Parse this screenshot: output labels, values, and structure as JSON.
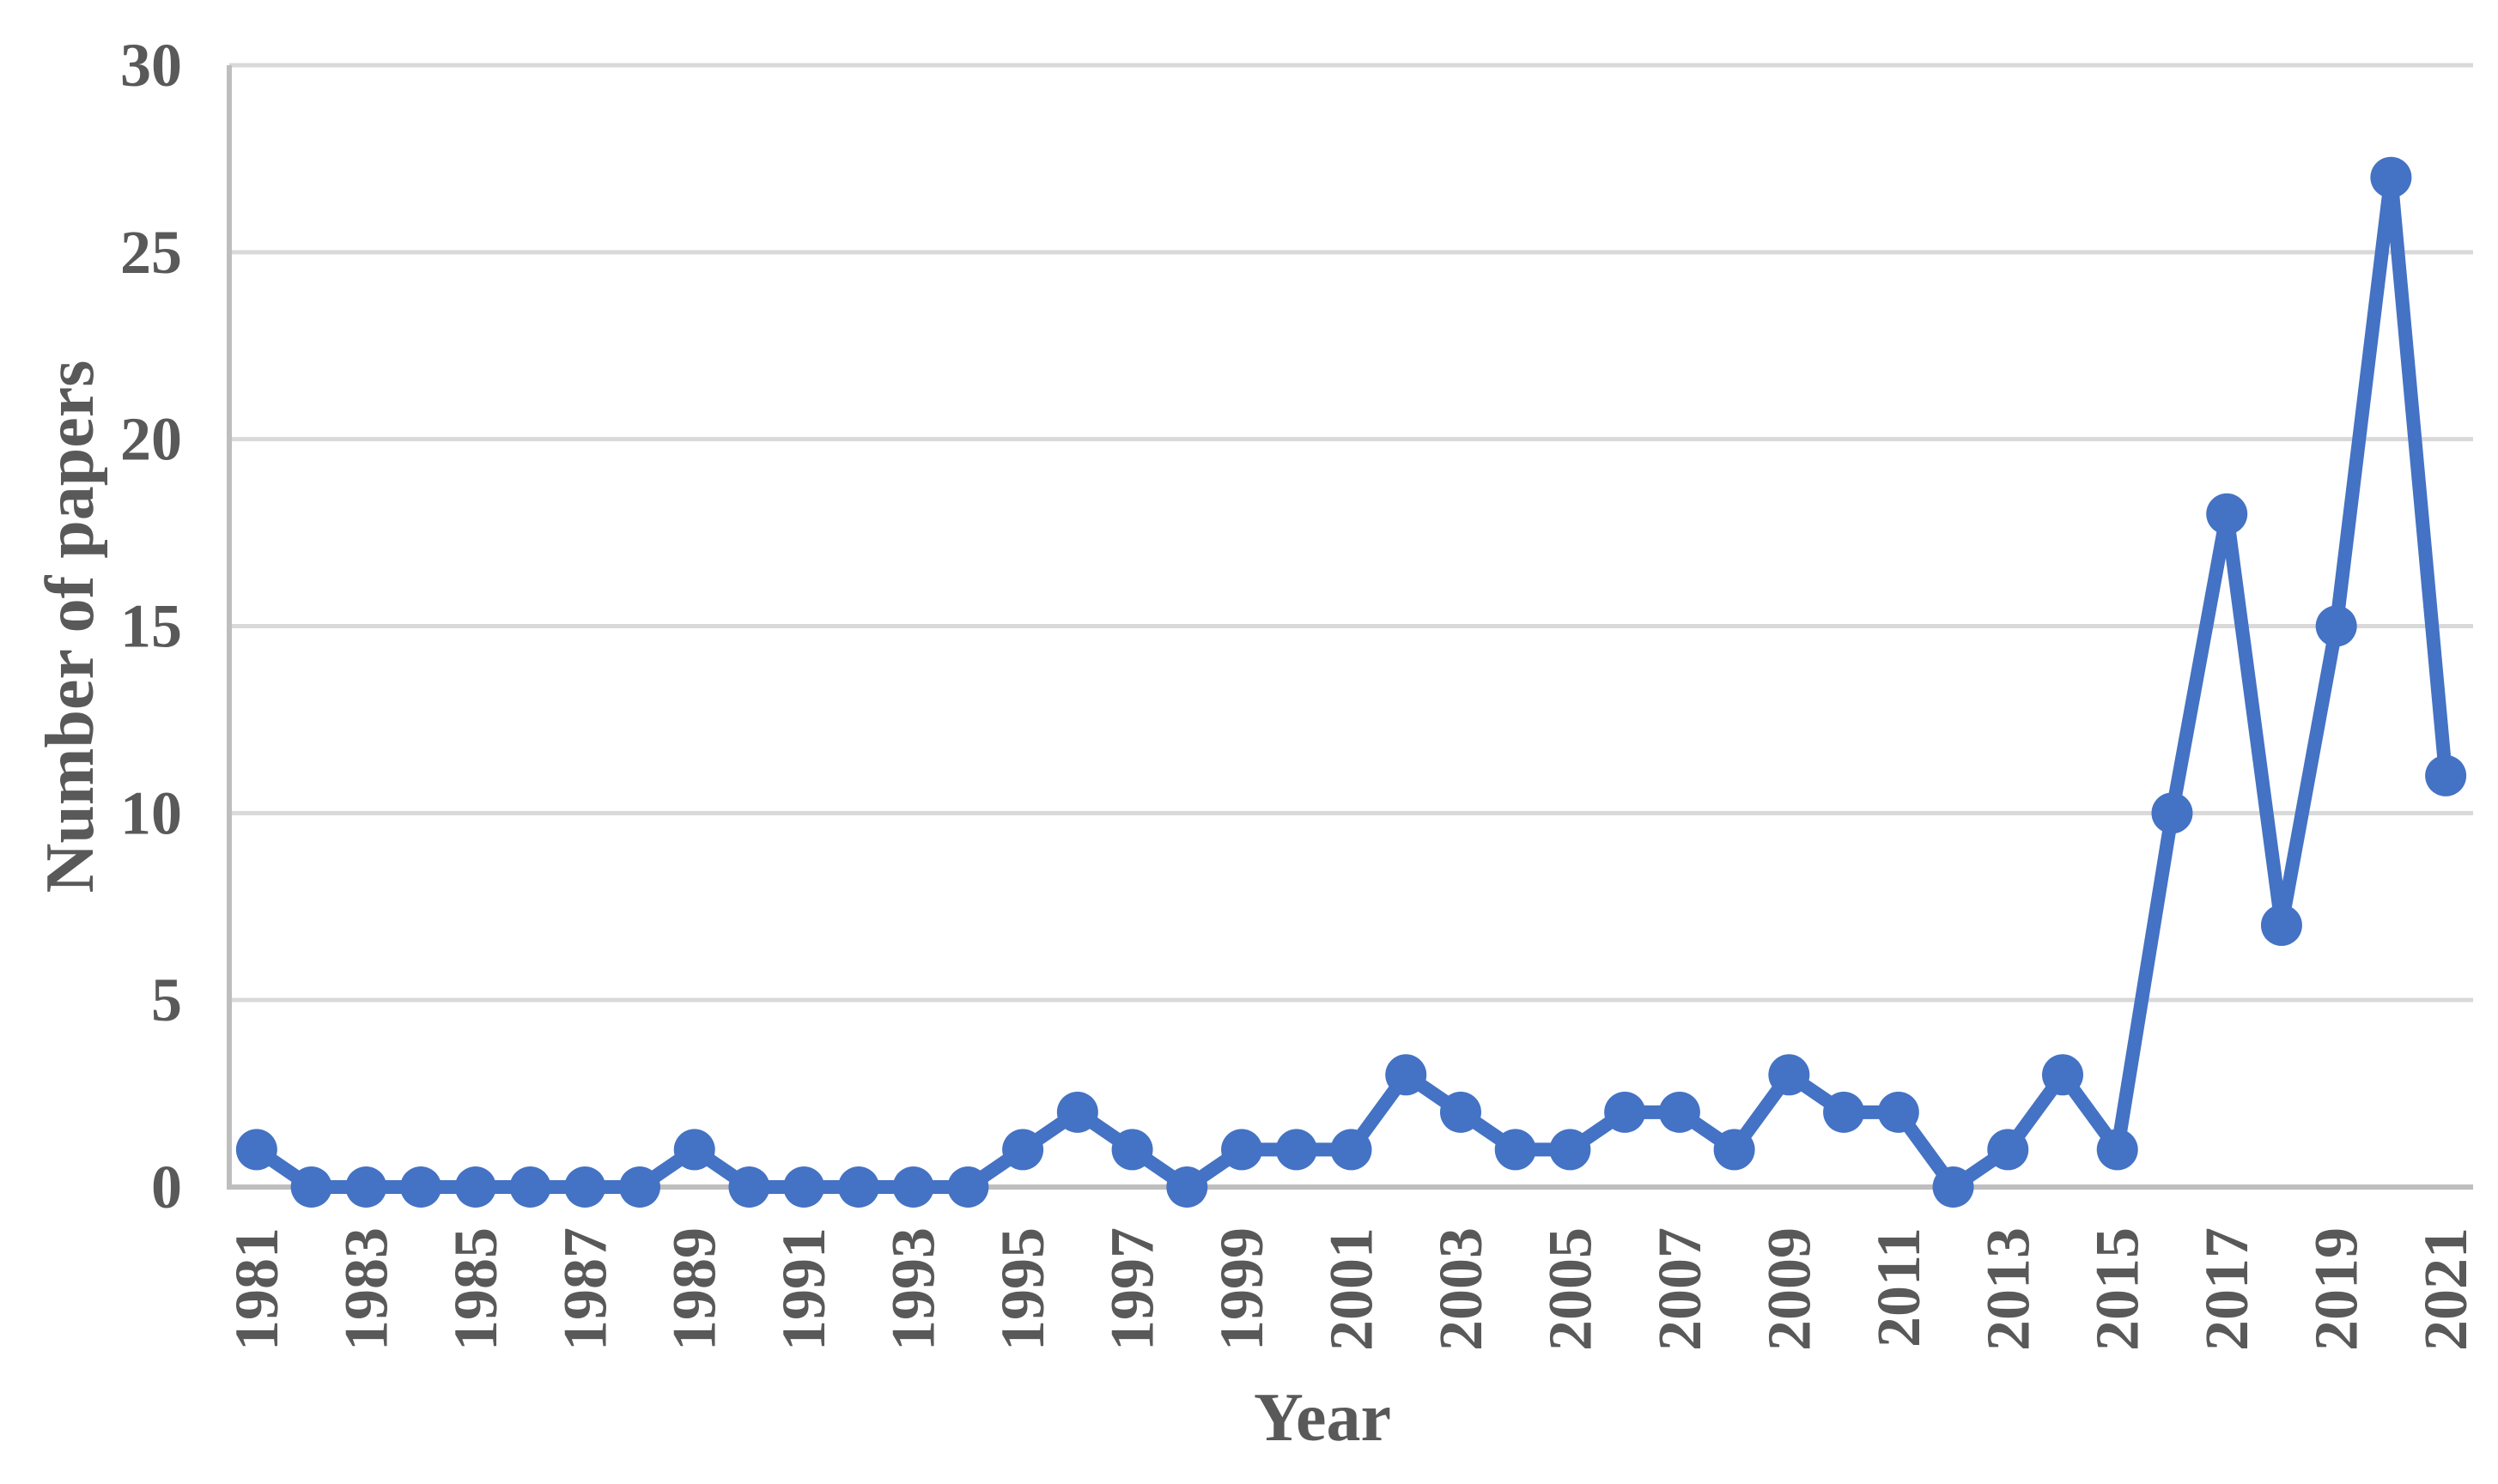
{
  "chart_data": {
    "type": "line",
    "title": "",
    "xlabel": "Year",
    "ylabel": "Number of papers",
    "series": [
      {
        "name": "Number of papers",
        "x": [
          1981,
          1982,
          1983,
          1984,
          1985,
          1986,
          1987,
          1988,
          1989,
          1990,
          1991,
          1992,
          1993,
          1994,
          1995,
          1996,
          1997,
          1998,
          1999,
          2000,
          2001,
          2002,
          2003,
          2004,
          2005,
          2006,
          2007,
          2008,
          2009,
          2010,
          2011,
          2012,
          2013,
          2014,
          2015,
          2016,
          2017,
          2018,
          2019,
          2020,
          2021
        ],
        "values": [
          1,
          0,
          0,
          0,
          0,
          0,
          0,
          0,
          1,
          0,
          0,
          0,
          0,
          0,
          1,
          2,
          1,
          0,
          1,
          1,
          1,
          3,
          2,
          1,
          1,
          2,
          2,
          1,
          3,
          2,
          2,
          0,
          1,
          3,
          1,
          10,
          18,
          7,
          15,
          27,
          11
        ]
      }
    ],
    "ylim": [
      0,
      30
    ],
    "ytick_interval": 5,
    "ytick_labels": [
      "0",
      "5",
      "10",
      "15",
      "20",
      "25",
      "30"
    ],
    "xtick_labels": [
      "1981",
      "1983",
      "1985",
      "1987",
      "1989",
      "1991",
      "1993",
      "1995",
      "1997",
      "1999",
      "2001",
      "2003",
      "2005",
      "2007",
      "2009",
      "2011",
      "2013",
      "2015",
      "2017",
      "2019",
      "2021"
    ],
    "grid": "horizontal-only",
    "legend": "none",
    "marker": "circle",
    "colors": {
      "line": "#4472C4",
      "marker": "#4472C4",
      "gridline": "#D9D9D9",
      "axis_line": "#BEBEBE",
      "text": "#595959",
      "background": "#FFFFFF"
    }
  }
}
